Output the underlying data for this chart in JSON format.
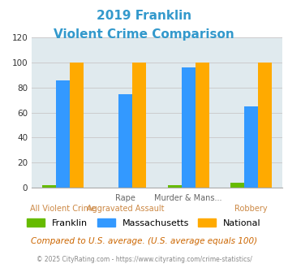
{
  "title_line1": "2019 Franklin",
  "title_line2": "Violent Crime Comparison",
  "title_color": "#3399cc",
  "cat_labels_top": [
    "",
    "Rape",
    "Murder & Mans...",
    ""
  ],
  "cat_labels_bot": [
    "All Violent Crime",
    "Aggravated Assault",
    "",
    "Robbery"
  ],
  "franklin": [
    2,
    0,
    2,
    4
  ],
  "massachusetts": [
    86,
    75,
    96,
    65
  ],
  "national": [
    100,
    100,
    100,
    100
  ],
  "franklin_color": "#66bb00",
  "massachusetts_color": "#3399ff",
  "national_color": "#ffaa00",
  "ylim": [
    0,
    120
  ],
  "yticks": [
    0,
    20,
    40,
    60,
    80,
    100,
    120
  ],
  "grid_color": "#cccccc",
  "bg_color": "#e0eaee",
  "footer_text": "© 2025 CityRating.com - https://www.cityrating.com/crime-statistics/",
  "compare_text": "Compared to U.S. average. (U.S. average equals 100)",
  "compare_color": "#cc6600",
  "footer_color": "#888888",
  "top_label_color": "#666666",
  "bot_label_color": "#cc8844"
}
